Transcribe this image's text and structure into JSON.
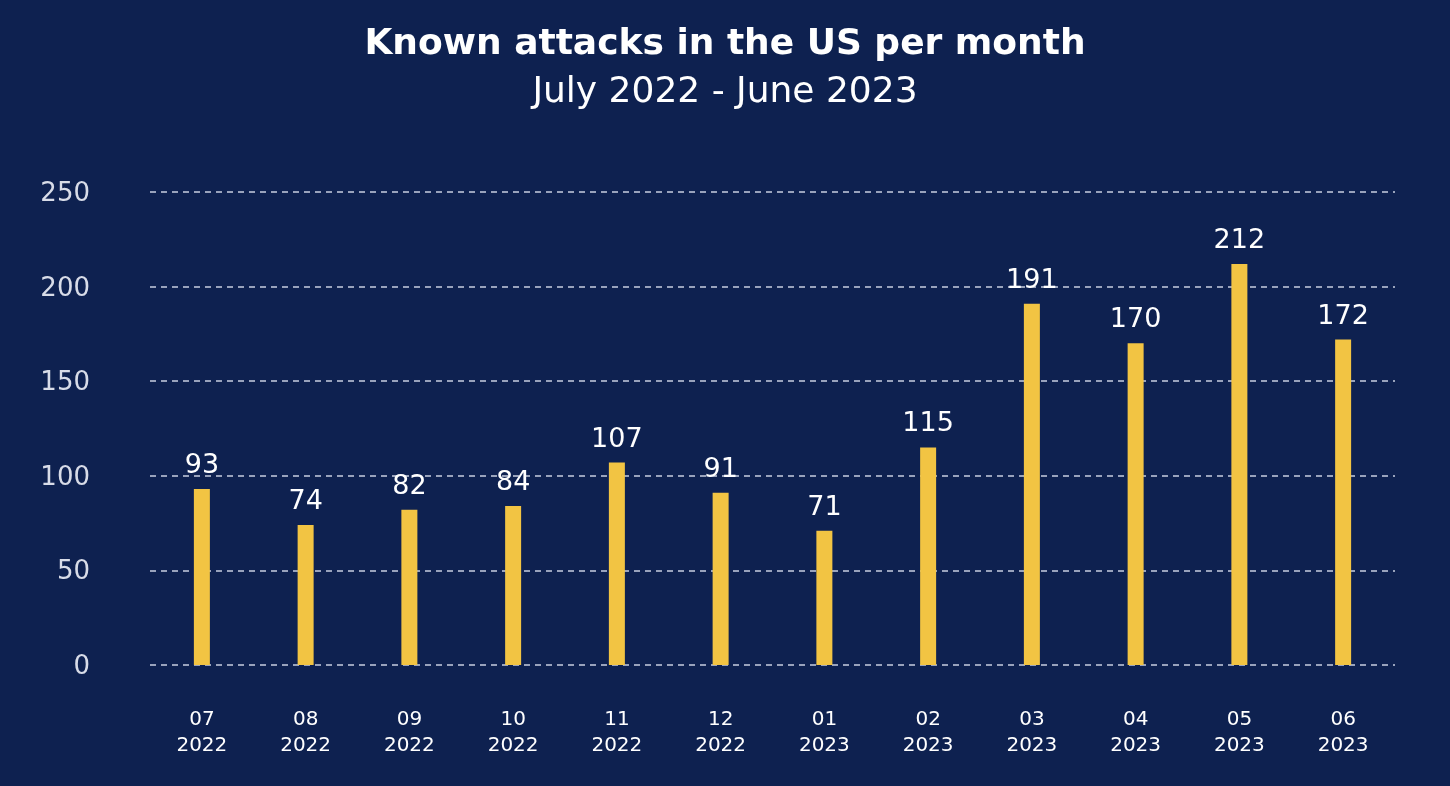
{
  "chart_data": {
    "type": "bar",
    "title": "Known attacks in the US per month",
    "subtitle": "July 2022 - June 2023",
    "categories": [
      "07\n2022",
      "08\n2022",
      "09\n2022",
      "10\n2022",
      "11\n2022",
      "12\n2022",
      "01\n2023",
      "02\n2023",
      "03\n2023",
      "04\n2023",
      "05\n2023",
      "06\n2023"
    ],
    "values": [
      93,
      74,
      82,
      84,
      107,
      91,
      71,
      115,
      191,
      170,
      212,
      172
    ],
    "color": "#f2c443",
    "ylim": [
      0,
      250
    ],
    "yticks": [
      0,
      50,
      100,
      150,
      200,
      250
    ],
    "grid": "y",
    "data_labels": true
  }
}
